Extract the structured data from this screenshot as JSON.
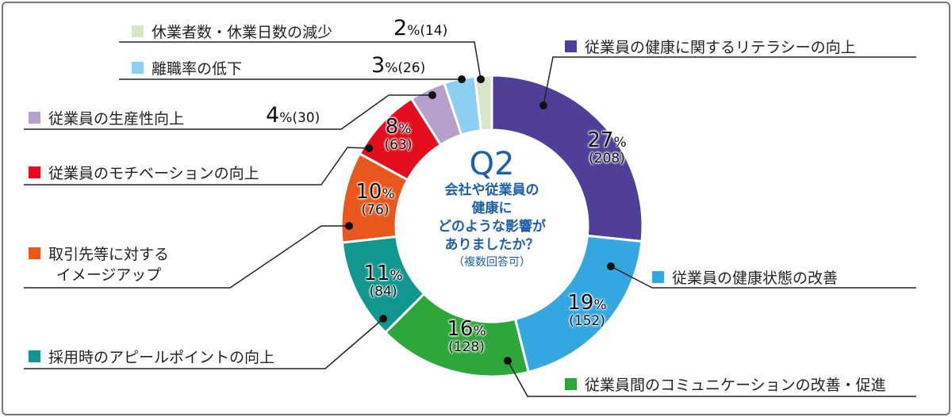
{
  "chart_data": {
    "type": "pie",
    "donut": true,
    "center_title": "Q2",
    "center_question": "会社や従業員の健康にどのような影響がありましたか？",
    "center_note": "（複数回答可）",
    "center_lines": [
      "会社や従業員の",
      "健康に",
      "どのような影響が",
      "ありましたか？"
    ],
    "slices": [
      {
        "label": "従業員の健康に関するリテラシーの向上",
        "percent": 27,
        "count": 208,
        "color": "#4f3f98"
      },
      {
        "label": "従業員の健康状態の改善",
        "percent": 19,
        "count": 152,
        "color": "#35a7e0"
      },
      {
        "label": "従業員間のコミュニケーションの改善・促進",
        "percent": 16,
        "count": 128,
        "color": "#2ea63a"
      },
      {
        "label": "採用時のアピールポイントの向上",
        "percent": 11,
        "count": 84,
        "color": "#11978f"
      },
      {
        "label": "取引先等に対するイメージアップ",
        "percent": 10,
        "count": 76,
        "color": "#e8581c"
      },
      {
        "label": "従業員のモチベーションの向上",
        "percent": 8,
        "count": 63,
        "color": "#e30d1d"
      },
      {
        "label": "従業員の生産性向上",
        "percent": 4,
        "count": 30,
        "color": "#b79fcb"
      },
      {
        "label": "離職率の低下",
        "percent": 3,
        "count": 26,
        "color": "#8dcff2"
      },
      {
        "label": "休業者数・休業日数の減少",
        "percent": 2,
        "count": 14,
        "color": "#d8e6c8"
      }
    ],
    "label_lines": {
      "4": [
        "取引先等に対する",
        "イメージアップ"
      ]
    }
  }
}
